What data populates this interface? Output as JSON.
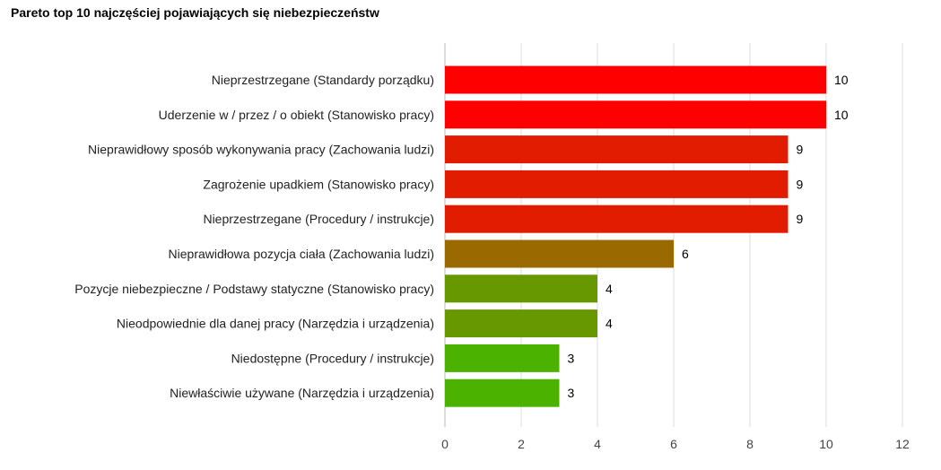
{
  "chart_data": {
    "type": "bar",
    "orientation": "horizontal",
    "title": "Pareto top 10 najczęściej pojawiających się niebezpieczeństw",
    "categories": [
      "Nieprzestrzegane (Standardy porządku)",
      "Uderzenie w / przez / o obiekt (Stanowisko pracy)",
      "Nieprawidłowy sposób wykonywania pracy (Zachowania ludzi)",
      "Zagrożenie upadkiem (Stanowisko pracy)",
      "Nieprzestrzegane (Procedury / instrukcje)",
      "Nieprawidłowa pozycja ciała (Zachowania ludzi)",
      "Pozycje niebezpieczne / Podstawy statyczne (Stanowisko pracy)",
      "Nieodpowiednie dla danej pracy (Narzędzia i urządzenia)",
      "Niedostępne (Procedury / instrukcje)",
      "Niewłaściwie używane (Narzędzia i urządzenia)"
    ],
    "values": [
      10,
      10,
      9,
      9,
      9,
      6,
      4,
      4,
      3,
      3
    ],
    "colors": [
      "#ff0000",
      "#ff0000",
      "#e21c00",
      "#e21c00",
      "#e21c00",
      "#9a6a00",
      "#689800",
      "#689800",
      "#4cb200",
      "#4cb200"
    ],
    "xlim": [
      0,
      12
    ],
    "xticks": [
      "0",
      "2",
      "4",
      "6",
      "8",
      "10",
      "12"
    ],
    "grid": true,
    "xlabel": "",
    "ylabel": ""
  }
}
